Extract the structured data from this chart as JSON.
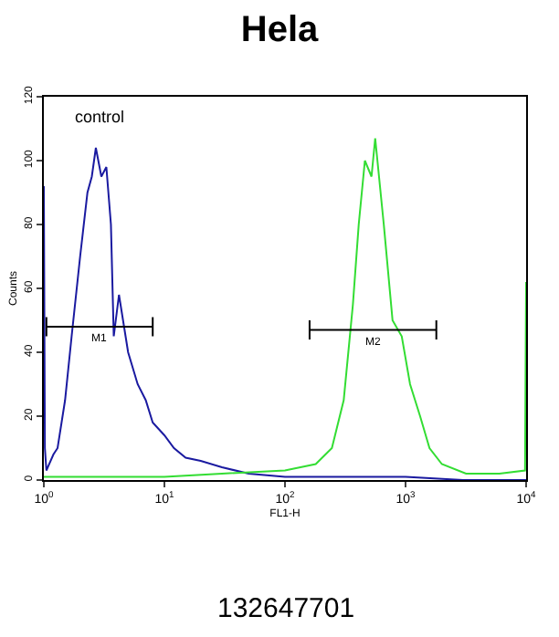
{
  "chart_data": {
    "type": "line",
    "title": "Hela",
    "xlabel": "FL1-H",
    "ylabel": "Counts",
    "log": "x",
    "xlim": [
      1,
      10000
    ],
    "xticks": [
      {
        "value": 1,
        "label": "10$^{0}$"
      },
      {
        "value": 10,
        "label": "10$^{1}$"
      },
      {
        "value": 100,
        "label": "10$^{2}$"
      },
      {
        "value": 1000,
        "label": "10$^{3}$"
      },
      {
        "value": 10000,
        "label": "10$^{4}$"
      }
    ],
    "ylim": [
      0,
      120
    ],
    "yticks": [
      0,
      20,
      40,
      60,
      80,
      100,
      120
    ],
    "grid": false,
    "legend": false,
    "marker": "none",
    "line_style": "solid",
    "series": [
      {
        "name": "control",
        "color": "#1a1aa0",
        "x": [
          1,
          1.02,
          1.05,
          1.2,
          1.3,
          1.5,
          1.7,
          2,
          2.3,
          2.5,
          2.7,
          3,
          3.3,
          3.6,
          3.8,
          4.2,
          5,
          6,
          7,
          8,
          10,
          12,
          15,
          20,
          30,
          50,
          100,
          300,
          1000,
          3000,
          10000
        ],
        "values": [
          92,
          10,
          3,
          8,
          10,
          25,
          45,
          70,
          90,
          95,
          104,
          95,
          98,
          80,
          45,
          58,
          40,
          30,
          25,
          18,
          14,
          10,
          7,
          6,
          4,
          2,
          1,
          1,
          1,
          0,
          0
        ]
      },
      {
        "color": "#33dd33",
        "x": [
          1,
          3,
          10,
          30,
          100,
          180,
          245,
          307,
          366,
          409,
          460,
          522,
          560,
          660,
          780,
          930,
          1090,
          1320,
          1580,
          2000,
          3180,
          6000,
          9800,
          10000
        ],
        "values": [
          1,
          1,
          1,
          2,
          3,
          5,
          10,
          25,
          55,
          80,
          100,
          95,
          107,
          80,
          50,
          45,
          30,
          20,
          10,
          5,
          2,
          2,
          3,
          62
        ]
      },
      {
        "type": "line",
        "name": "M1",
        "color": "#000000",
        "x": [
          1.05,
          1.05,
          1.05,
          8,
          8,
          8
        ],
        "values": [
          51,
          45,
          48,
          48,
          51,
          45
        ]
      },
      {
        "type": "line",
        "name": "M2",
        "color": "#000000",
        "x": [
          160,
          160,
          160,
          1800,
          1800,
          1800
        ],
        "values": [
          50,
          44,
          47,
          47,
          50,
          44
        ]
      }
    ],
    "annotations": [
      "132647701"
    ]
  }
}
